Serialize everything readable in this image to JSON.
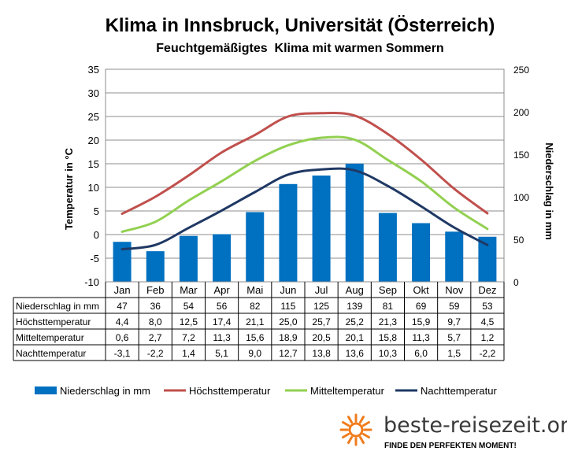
{
  "chart_data": {
    "type": "bar+line",
    "title": "Klima in Innsbruck, Universität (Österreich)",
    "subtitle": "Feuchtgemäßigtes  Klima mit warmen Sommern",
    "ylabel_left": "Temperatur in °C",
    "ylabel_right": "Niederschlag in mm",
    "ylim_left": [
      -10,
      35
    ],
    "ylim_right": [
      0,
      250
    ],
    "yticks_left": [
      "-10",
      "-5",
      "0",
      "5",
      "10",
      "15",
      "20",
      "25",
      "30",
      "35"
    ],
    "yticks_right": [
      "0",
      "50",
      "100",
      "150",
      "200",
      "250"
    ],
    "categories": [
      "Jan",
      "Feb",
      "Mar",
      "Apr",
      "Mai",
      "Jun",
      "Jul",
      "Aug",
      "Sep",
      "Okt",
      "Nov",
      "Dez"
    ],
    "grid": true,
    "legend_position": "bottom",
    "series": [
      {
        "name": "Niederschlag in mm",
        "type": "bar",
        "axis": "right",
        "color": "#0070c0",
        "values": [
          47,
          36,
          54,
          56,
          82,
          115,
          125,
          139,
          81,
          69,
          59,
          53
        ],
        "labels": [
          "47",
          "36",
          "54",
          "56",
          "82",
          "115",
          "125",
          "139",
          "81",
          "69",
          "59",
          "53"
        ]
      },
      {
        "name": "Höchsttemperatur",
        "type": "line",
        "axis": "left",
        "color": "#c0504d",
        "values": [
          4.4,
          8.0,
          12.5,
          17.4,
          21.1,
          25.0,
          25.7,
          25.2,
          21.3,
          15.9,
          9.7,
          4.5
        ],
        "labels": [
          "4,4",
          "8,0",
          "12,5",
          "17,4",
          "21,1",
          "25,0",
          "25,7",
          "25,2",
          "21,3",
          "15,9",
          "9,7",
          "4,5"
        ]
      },
      {
        "name": "Mitteltemperatur",
        "type": "line",
        "axis": "left",
        "color": "#92d050",
        "values": [
          0.6,
          2.7,
          7.2,
          11.3,
          15.6,
          18.9,
          20.5,
          20.1,
          15.8,
          11.3,
          5.7,
          1.2
        ],
        "labels": [
          "0,6",
          "2,7",
          "7,2",
          "11,3",
          "15,6",
          "18,9",
          "20,5",
          "20,1",
          "15,8",
          "11,3",
          "5,7",
          "1,2"
        ]
      },
      {
        "name": "Nachttemperatur",
        "type": "line",
        "axis": "left",
        "color": "#1f3864",
        "values": [
          -3.1,
          -2.2,
          1.4,
          5.1,
          9.0,
          12.7,
          13.8,
          13.6,
          10.3,
          6.0,
          1.5,
          -2.2
        ],
        "labels": [
          "-3,1",
          "-2,2",
          "1,4",
          "5,1",
          "9,0",
          "12,7",
          "13,8",
          "13,6",
          "10,3",
          "6,0",
          "1,5",
          "-2,2"
        ]
      }
    ]
  },
  "brand": {
    "name": "beste-reisezeit.org",
    "tagline": "FINDE DEN PERFEKTEN MOMENT!",
    "sun_color": "#f07c1c"
  }
}
